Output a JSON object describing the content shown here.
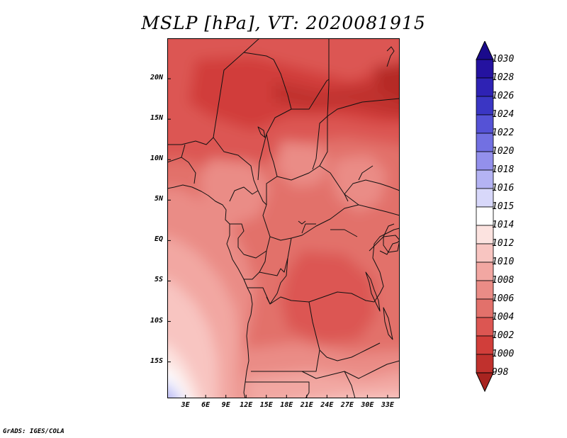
{
  "title": "MSLP [hPa], VT: 2020081915",
  "credit": "GrADS: IGES/COLA",
  "map": {
    "region": "Central Africa",
    "lat_labels": [
      {
        "text": "20N",
        "lat": 20
      },
      {
        "text": "15N",
        "lat": 15
      },
      {
        "text": "10N",
        "lat": 10
      },
      {
        "text": "5N",
        "lat": 5
      },
      {
        "text": "EQ",
        "lat": 0
      },
      {
        "text": "5S",
        "lat": -5
      },
      {
        "text": "10S",
        "lat": -10
      },
      {
        "text": "15S",
        "lat": -15
      }
    ],
    "lon_labels": [
      {
        "text": "3E",
        "lon": 3
      },
      {
        "text": "6E",
        "lon": 6
      },
      {
        "text": "9E",
        "lon": 9
      },
      {
        "text": "12E",
        "lon": 12
      },
      {
        "text": "15E",
        "lon": 15
      },
      {
        "text": "18E",
        "lon": 18
      },
      {
        "text": "21E",
        "lon": 21
      },
      {
        "text": "24E",
        "lon": 24
      },
      {
        "text": "27E",
        "lon": 27
      },
      {
        "text": "30E",
        "lon": 30
      },
      {
        "text": "33E",
        "lon": 33
      }
    ],
    "lat_range": [
      -19.5,
      25
    ],
    "lon_range": [
      0.3,
      34.8
    ]
  },
  "legend": {
    "levels": [
      {
        "label": "1030",
        "color": "#1a0a8c"
      },
      {
        "label": "1028",
        "color": "#2412a0"
      },
      {
        "label": "1026",
        "color": "#2e22b4"
      },
      {
        "label": "1024",
        "color": "#3a36c4"
      },
      {
        "label": "1022",
        "color": "#5552d6"
      },
      {
        "label": "1020",
        "color": "#7270e2"
      },
      {
        "label": "1018",
        "color": "#9390ec"
      },
      {
        "label": "1016",
        "color": "#b4b3f3"
      },
      {
        "label": "1015",
        "color": "#d8d8fa"
      },
      {
        "label": "1014",
        "color": "#ffffff"
      },
      {
        "label": "1012",
        "color": "#fce3e0"
      },
      {
        "label": "1010",
        "color": "#f8c5c1"
      },
      {
        "label": "1008",
        "color": "#f2a7a2"
      },
      {
        "label": "1006",
        "color": "#ea8c86"
      },
      {
        "label": "1004",
        "color": "#e2716b"
      },
      {
        "label": "1002",
        "color": "#dc5652"
      },
      {
        "label": "1000",
        "color": "#d13e3a"
      },
      {
        "label": "998",
        "color": "#c0312d"
      }
    ],
    "below_color": "#a82420"
  }
}
